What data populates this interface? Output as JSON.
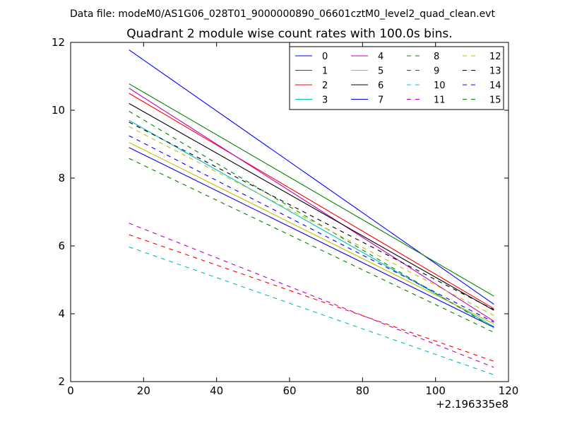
{
  "chart_data": {
    "type": "line",
    "suptitle": "Data file: modeM0/AS1G06_028T01_9000000890_06601cztM0_level2_quad_clean.evt",
    "title": "Quadrant 2 module wise count rates with 100.0s bins.",
    "xlabel": "",
    "ylabel": "",
    "xlim": [
      0,
      120
    ],
    "ylim": [
      2,
      12
    ],
    "x_offset_label": "+2.196335e8",
    "x_ticks": [
      {
        "value": 0,
        "label": "0"
      },
      {
        "value": 20,
        "label": "20"
      },
      {
        "value": 40,
        "label": "40"
      },
      {
        "value": 60,
        "label": "60"
      },
      {
        "value": 80,
        "label": "80"
      },
      {
        "value": 100,
        "label": "100"
      },
      {
        "value": 120,
        "label": "120"
      }
    ],
    "y_ticks": [
      {
        "value": 2,
        "label": "2"
      },
      {
        "value": 4,
        "label": "4"
      },
      {
        "value": 6,
        "label": "6"
      },
      {
        "value": 8,
        "label": "8"
      },
      {
        "value": 10,
        "label": "10"
      },
      {
        "value": 12,
        "label": "12"
      }
    ],
    "legend_position": "top-right",
    "x": [
      16,
      116
    ],
    "series": [
      {
        "name": "0",
        "color": "#0000ff",
        "style": "solid",
        "values": [
          11.78,
          4.28
        ]
      },
      {
        "name": "1",
        "color": "#008000",
        "style": "solid",
        "values": [
          10.78,
          4.52
        ]
      },
      {
        "name": "2",
        "color": "#ff0000",
        "style": "solid",
        "values": [
          10.5,
          4.15
        ]
      },
      {
        "name": "3",
        "color": "#00bfbf",
        "style": "solid",
        "values": [
          9.7,
          3.62
        ]
      },
      {
        "name": "4",
        "color": "#bf00bf",
        "style": "solid",
        "values": [
          10.65,
          3.78
        ]
      },
      {
        "name": "5",
        "color": "#bfbf00",
        "style": "solid",
        "values": [
          9.05,
          3.7
        ]
      },
      {
        "name": "6",
        "color": "#000000",
        "style": "solid",
        "values": [
          10.2,
          4.1
        ]
      },
      {
        "name": "7",
        "color": "#0000ff",
        "style": "solid",
        "values": [
          8.9,
          3.6
        ]
      },
      {
        "name": "8",
        "color": "#008000",
        "style": "dashed",
        "values": [
          9.97,
          3.58
        ]
      },
      {
        "name": "9",
        "color": "#ff0000",
        "style": "dashed",
        "values": [
          6.33,
          2.6
        ]
      },
      {
        "name": "10",
        "color": "#00bfbf",
        "style": "dashed",
        "values": [
          5.97,
          2.2
        ]
      },
      {
        "name": "11",
        "color": "#bf00bf",
        "style": "dashed",
        "values": [
          6.67,
          2.42
        ]
      },
      {
        "name": "12",
        "color": "#bfbf00",
        "style": "dashed",
        "values": [
          9.52,
          3.95
        ]
      },
      {
        "name": "13",
        "color": "#000000",
        "style": "dashed",
        "values": [
          9.65,
          4.12
        ]
      },
      {
        "name": "14",
        "color": "#0000ff",
        "style": "dashed",
        "values": [
          9.25,
          3.75
        ]
      },
      {
        "name": "15",
        "color": "#008000",
        "style": "dashed",
        "values": [
          8.58,
          3.45
        ]
      }
    ]
  }
}
